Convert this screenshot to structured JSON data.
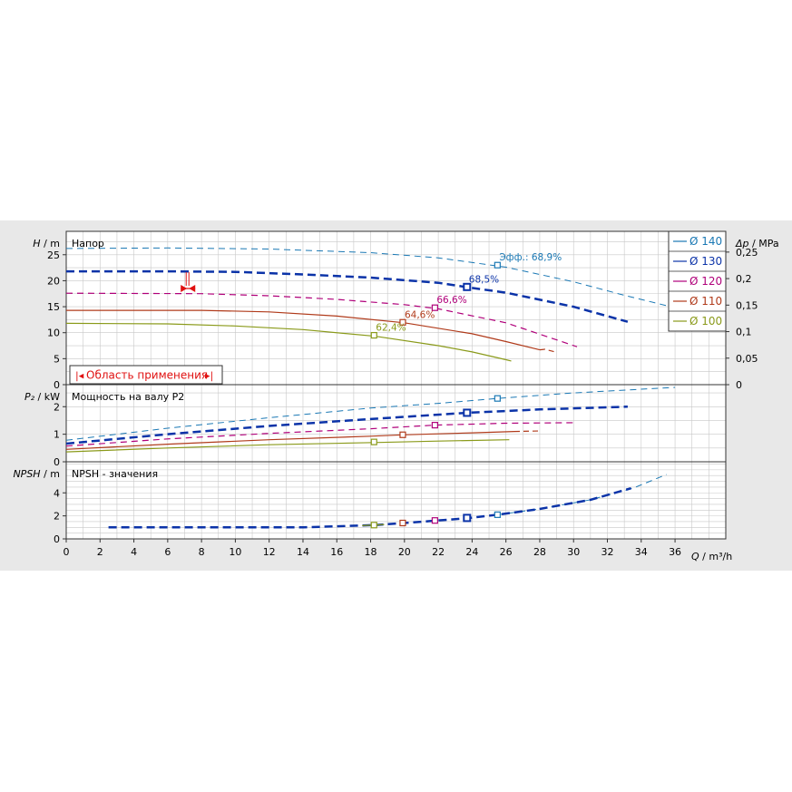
{
  "chart_data": {
    "type": "line",
    "x_axis": {
      "label_var": "Q",
      "label_unit": " / m³/h",
      "range": [
        0,
        39
      ],
      "ticks": [
        0,
        2,
        4,
        6,
        8,
        10,
        12,
        14,
        16,
        18,
        20,
        22,
        24,
        26,
        28,
        30,
        32,
        34,
        36
      ]
    },
    "panels": [
      {
        "id": "head",
        "title": "Напор",
        "y_label_var": "H",
        "y_label_unit": " / m",
        "y_range": [
          0,
          29.5
        ],
        "y_ticks": [
          0,
          5,
          10,
          15,
          20,
          25
        ],
        "right_axis": {
          "label_var": "Δp",
          "label_unit": " / MPa",
          "ticks": [
            0,
            0.05,
            0.1,
            0.15,
            0.2,
            0.25
          ],
          "tick_labels": [
            "0",
            "0,05",
            "0,1",
            "0,15",
            "0,2",
            "0,25"
          ]
        },
        "series": [
          {
            "name": "Ø 140",
            "color": "#1a78b4",
            "width": 1,
            "dash": "7,5",
            "pts": [
              [
                0,
                26.2
              ],
              [
                6,
                26.3
              ],
              [
                12,
                26.1
              ],
              [
                18,
                25.4
              ],
              [
                22,
                24.4
              ],
              [
                26,
                22.6
              ],
              [
                30,
                19.8
              ],
              [
                33,
                17.2
              ],
              [
                36,
                14.8
              ]
            ]
          },
          {
            "name": "Ø 130",
            "color": "#0b33a8",
            "width": 2.5,
            "dash": "9,5",
            "pts": [
              [
                0,
                21.8
              ],
              [
                6,
                21.8
              ],
              [
                10,
                21.7
              ],
              [
                14,
                21.2
              ],
              [
                18,
                20.6
              ],
              [
                22,
                19.6
              ],
              [
                24,
                18.6
              ],
              [
                26,
                17.7
              ],
              [
                30,
                15
              ],
              [
                33.2,
                12.1
              ]
            ]
          },
          {
            "name": "Ø 120",
            "color": "#b0007a",
            "width": 1.2,
            "dash": "7,5",
            "pts": [
              [
                0,
                17.6
              ],
              [
                8,
                17.5
              ],
              [
                12,
                17.1
              ],
              [
                16,
                16.4
              ],
              [
                20,
                15.4
              ],
              [
                22,
                14.6
              ],
              [
                26,
                11.9
              ],
              [
                30.2,
                7.3
              ]
            ]
          },
          {
            "name": "Ø 110",
            "color": "#b03a1a",
            "width": 1.2,
            "dash": "",
            "pts": [
              [
                0,
                14.3
              ],
              [
                8,
                14.3
              ],
              [
                12,
                14
              ],
              [
                16,
                13.2
              ],
              [
                20,
                11.9
              ],
              [
                24,
                9.8
              ],
              [
                26,
                8.3
              ],
              [
                28,
                6.7
              ]
            ]
          },
          {
            "name": "Ø 100",
            "color": "#8a9a1a",
            "width": 1.2,
            "dash": "",
            "pts": [
              [
                0,
                11.8
              ],
              [
                6,
                11.7
              ],
              [
                10,
                11.3
              ],
              [
                14,
                10.6
              ],
              [
                18.3,
                9.3
              ],
              [
                22,
                7.5
              ],
              [
                24,
                6.3
              ],
              [
                26,
                4.8
              ]
            ]
          }
        ],
        "dash_extensions": [
          {
            "color": "#b03a1a",
            "pts": [
              [
                28,
                6.7
              ],
              [
                28.3,
                6.8
              ],
              [
                28.9,
                6.3
              ]
            ]
          },
          {
            "color": "#8a9a1a",
            "pts": [
              [
                26,
                4.8
              ],
              [
                26.5,
                4.4
              ]
            ]
          }
        ],
        "markers": [
          {
            "series": 0,
            "x": 25.5,
            "y": 23.0,
            "label": "Эфф.: 68,9%"
          },
          {
            "series": 1,
            "x": 23.7,
            "y": 18.8,
            "label": "68,5%"
          },
          {
            "series": 2,
            "x": 21.8,
            "y": 14.8,
            "label": "66,6%"
          },
          {
            "series": 3,
            "x": 19.9,
            "y": 12.0,
            "label": "64,6%"
          },
          {
            "series": 4,
            "x": 18.2,
            "y": 9.5,
            "label": "62,4%"
          }
        ]
      },
      {
        "id": "power",
        "title": "Мощность на валу P2",
        "y_label_var": "P₂",
        "y_label_unit": " / kW",
        "y_range": [
          0,
          2.8
        ],
        "y_ticks": [
          0,
          1,
          2
        ],
        "series": [
          {
            "name": "Ø 140",
            "color": "#1a78b4",
            "width": 1,
            "dash": "7,5",
            "pts": [
              [
                0,
                0.78
              ],
              [
                6,
                1.22
              ],
              [
                12,
                1.6
              ],
              [
                18,
                1.95
              ],
              [
                22,
                2.12
              ],
              [
                25.5,
                2.3
              ],
              [
                30,
                2.5
              ],
              [
                36,
                2.7
              ]
            ]
          },
          {
            "name": "Ø 130",
            "color": "#0b33a8",
            "width": 2.5,
            "dash": "9,5",
            "pts": [
              [
                0,
                0.66
              ],
              [
                6,
                1.0
              ],
              [
                12,
                1.3
              ],
              [
                18,
                1.55
              ],
              [
                23.7,
                1.78
              ],
              [
                28,
                1.9
              ],
              [
                33.2,
                2.0
              ]
            ]
          },
          {
            "name": "Ø 120",
            "color": "#b0007a",
            "width": 1.2,
            "dash": "7,5",
            "pts": [
              [
                0,
                0.57
              ],
              [
                6,
                0.83
              ],
              [
                12,
                1.03
              ],
              [
                18,
                1.2
              ],
              [
                21.8,
                1.33
              ],
              [
                26,
                1.4
              ],
              [
                30.2,
                1.42
              ]
            ]
          },
          {
            "name": "Ø 110",
            "color": "#b03a1a",
            "width": 1.2,
            "dash": "",
            "pts": [
              [
                0,
                0.45
              ],
              [
                6,
                0.64
              ],
              [
                12,
                0.8
              ],
              [
                18,
                0.93
              ],
              [
                19.9,
                0.98
              ],
              [
                24,
                1.05
              ],
              [
                26.5,
                1.1
              ]
            ]
          },
          {
            "name": "Ø 100",
            "color": "#8a9a1a",
            "width": 1.2,
            "dash": "",
            "pts": [
              [
                0,
                0.36
              ],
              [
                6,
                0.5
              ],
              [
                12,
                0.62
              ],
              [
                18.2,
                0.7
              ],
              [
                22,
                0.75
              ],
              [
                26.2,
                0.8
              ]
            ]
          }
        ],
        "dash_extensions": [
          {
            "color": "#b03a1a",
            "pts": [
              [
                26.5,
                1.1
              ],
              [
                28.1,
                1.12
              ]
            ]
          }
        ],
        "markers": [
          {
            "series": 0,
            "x": 25.5,
            "y": 2.3
          },
          {
            "series": 1,
            "x": 23.7,
            "y": 1.78
          },
          {
            "series": 2,
            "x": 21.8,
            "y": 1.33
          },
          {
            "series": 3,
            "x": 19.9,
            "y": 0.98
          },
          {
            "series": 4,
            "x": 18.2,
            "y": 0.72
          }
        ]
      },
      {
        "id": "npsh",
        "title": "NPSH - значения",
        "y_label_var": "NPSH",
        "y_label_unit": " / m",
        "y_range": [
          0,
          6.7
        ],
        "y_ticks": [
          0,
          2,
          4
        ],
        "series": [
          {
            "name": "Ø 140",
            "color": "#1a78b4",
            "width": 1,
            "dash": "7,5",
            "pts": [
              [
                25.5,
                2.1
              ],
              [
                28,
                2.6
              ],
              [
                31,
                3.4
              ],
              [
                33.5,
                4.4
              ],
              [
                35.5,
                5.6
              ]
            ]
          },
          {
            "name": "Ø 130",
            "color": "#0b33a8",
            "width": 2.5,
            "dash": "9,5",
            "pts": [
              [
                2.5,
                1.0
              ],
              [
                8,
                1.0
              ],
              [
                14,
                1.0
              ],
              [
                18.2,
                1.2
              ],
              [
                20,
                1.38
              ],
              [
                22,
                1.6
              ],
              [
                23.7,
                1.8
              ],
              [
                25.5,
                2.1
              ],
              [
                28,
                2.6
              ],
              [
                31,
                3.4
              ],
              [
                33.4,
                4.4
              ]
            ]
          },
          {
            "name": "Ø 120",
            "color": "#b0007a",
            "width": 1.2,
            "dash": "",
            "pts": []
          },
          {
            "name": "Ø 110",
            "color": "#b03a1a",
            "width": 1.2,
            "dash": "",
            "pts": []
          },
          {
            "name": "Ø 100",
            "color": "#8a9a1a",
            "width": 1.2,
            "dash": "",
            "pts": [
              [
                17.5,
                1.15
              ],
              [
                18.8,
                1.25
              ]
            ]
          }
        ],
        "dash_extensions": [],
        "markers": [
          {
            "series": 0,
            "x": 25.5,
            "y": 2.1
          },
          {
            "series": 1,
            "x": 23.7,
            "y": 1.82
          },
          {
            "series": 2,
            "x": 21.8,
            "y": 1.6
          },
          {
            "series": 3,
            "x": 19.9,
            "y": 1.38
          },
          {
            "series": 4,
            "x": 18.2,
            "y": 1.2
          }
        ]
      }
    ],
    "legend": {
      "placement": "top-right",
      "entries": [
        {
          "label": "Ø 140",
          "color": "#1a78b4"
        },
        {
          "label": "Ø 130",
          "color": "#0b33a8"
        },
        {
          "label": "Ø 120",
          "color": "#b0007a"
        },
        {
          "label": "Ø 110",
          "color": "#b03a1a"
        },
        {
          "label": "Ø 100",
          "color": "#8a9a1a"
        }
      ]
    },
    "application_range": {
      "label": "Область применения",
      "color": "#e01010",
      "min_flow_marker_x": 7.2,
      "min_flow_marker_y": 18.5
    },
    "grid": true
  }
}
